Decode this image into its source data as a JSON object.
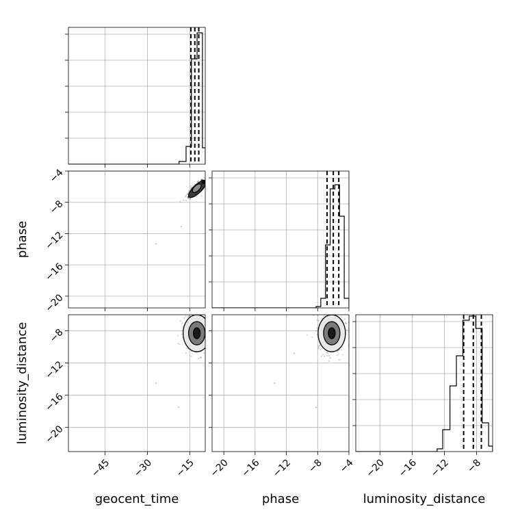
{
  "chart_data": {
    "type": "corner",
    "parameters": [
      "geocent_time",
      "phase",
      "luminosity_distance"
    ],
    "axis_labels": {
      "bottom": [
        "geocent_time",
        "phase",
        "luminosity_distance"
      ],
      "left": [
        "phase",
        "luminosity_distance"
      ]
    },
    "ranges": {
      "geocent_time": [
        -58,
        -9.5
      ],
      "phase": [
        -21.5,
        -4
      ],
      "luminosity_distance": [
        -23,
        -6
      ]
    },
    "ticks": {
      "geocent_time": [
        -45,
        -30,
        -15
      ],
      "phase": [
        -20,
        -16,
        -12,
        -8,
        -4
      ],
      "luminosity_distance": [
        -20,
        -16,
        -12,
        -8
      ]
    },
    "tick_labels": {
      "geocent_time": [
        "−45",
        "−30",
        "−15"
      ],
      "phase": [
        "−20",
        "−16",
        "−12",
        "−8",
        "−4"
      ],
      "luminosity_distance": [
        "−20",
        "−16",
        "−12",
        "−8"
      ]
    },
    "quantiles": {
      "geocent_time": [
        -14.6,
        -13.2,
        -11.8
      ],
      "phase": [
        -6.8,
        -6.0,
        -5.3
      ],
      "luminosity_distance": [
        -9.6,
        -8.4,
        -7.4
      ]
    },
    "histograms": {
      "geocent_time": {
        "edges": [
          -18.8,
          -16.3,
          -14.4,
          -12.4,
          -10.5,
          -9.5
        ],
        "values": [
          0.02,
          0.13,
          0.77,
          0.96,
          0.12
        ]
      },
      "phase": {
        "edges": [
          -8.2,
          -7.6,
          -7.0,
          -6.4,
          -5.8,
          -5.2,
          -4.6,
          -4.0
        ],
        "values": [
          0.01,
          0.07,
          0.46,
          0.87,
          0.9,
          0.67,
          0.07
        ]
      },
      "luminosity_distance": {
        "edges": [
          -12.9,
          -12.2,
          -11.3,
          -10.5,
          -9.7,
          -8.9,
          -8.1,
          -7.3,
          -6.5,
          -6.0
        ],
        "values": [
          0.02,
          0.16,
          0.48,
          0.7,
          0.96,
          0.99,
          0.9,
          0.21,
          0.04
        ]
      }
    },
    "scatter_panels": [
      {
        "x": "geocent_time",
        "y": "phase",
        "center": [
          -12.5,
          -6.2
        ],
        "outliers": [
          [
            -27,
            -13.3
          ],
          [
            -18,
            -11.1
          ]
        ]
      },
      {
        "x": "geocent_time",
        "y": "luminosity_distance",
        "center": [
          -12.5,
          -8.3
        ],
        "outliers": [
          [
            -27,
            -14.5
          ],
          [
            -19,
            -17.5
          ]
        ]
      },
      {
        "x": "phase",
        "y": "luminosity_distance",
        "center": [
          -6.2,
          -8.3
        ],
        "outliers": [
          [
            -11,
            -10.8
          ],
          [
            -13.5,
            -14.5
          ],
          [
            -8.2,
            -17.5
          ]
        ]
      }
    ],
    "grid": true
  }
}
